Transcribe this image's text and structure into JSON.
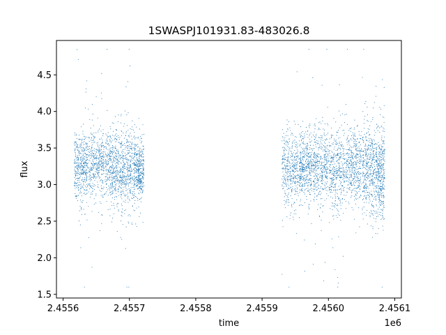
{
  "chart_data": {
    "type": "scatter",
    "title": "1SWASPJ101931.83-483026.8",
    "xlabel": "time",
    "ylabel": "flux",
    "x_offset_label": "1e6",
    "x_scale": 1000000,
    "xlim": [
      2455590,
      2456110
    ],
    "ylim": [
      1.45,
      4.97
    ],
    "xticks": [
      2455600,
      2455700,
      2455800,
      2455900,
      2456000,
      2456100
    ],
    "xtick_labels": [
      "2.4556",
      "2.4557",
      "2.4558",
      "2.4559",
      "2.4560",
      "2.4561"
    ],
    "yticks": [
      1.5,
      2.0,
      2.5,
      3.0,
      3.5,
      4.0,
      4.5
    ],
    "ytick_labels": [
      "1.5",
      "2.0",
      "2.5",
      "3.0",
      "3.5",
      "4.0",
      "4.5"
    ],
    "grid": false,
    "point_color": "#1f77b4",
    "series": [
      {
        "segments": [
          {
            "x_start": 2455617,
            "x_end": 2455637,
            "center": 3.25,
            "spread": 0.22
          },
          {
            "x_start": 2455638,
            "x_end": 2455662,
            "center": 3.3,
            "spread": 0.22
          },
          {
            "x_start": 2455663,
            "x_end": 2455684,
            "center": 3.25,
            "spread": 0.25
          },
          {
            "x_start": 2455685,
            "x_end": 2455705,
            "center": 3.2,
            "spread": 0.3
          },
          {
            "x_start": 2455706,
            "x_end": 2455722,
            "center": 3.2,
            "spread": 0.22
          },
          {
            "x_start": 2455930,
            "x_end": 2455955,
            "center": 3.2,
            "spread": 0.25
          },
          {
            "x_start": 2455956,
            "x_end": 2455975,
            "center": 3.25,
            "spread": 0.22
          },
          {
            "x_start": 2455976,
            "x_end": 2456000,
            "center": 3.25,
            "spread": 0.28
          },
          {
            "x_start": 2456001,
            "x_end": 2456025,
            "center": 3.2,
            "spread": 0.28
          },
          {
            "x_start": 2456026,
            "x_end": 2456050,
            "center": 3.25,
            "spread": 0.25
          },
          {
            "x_start": 2456051,
            "x_end": 2456070,
            "center": 3.2,
            "spread": 0.32
          },
          {
            "x_start": 2456071,
            "x_end": 2456085,
            "center": 3.15,
            "spread": 0.32
          }
        ],
        "points_per_segment": 420,
        "outlier_fraction": 0.04,
        "y_min": 1.6,
        "y_max": 4.85
      }
    ]
  }
}
